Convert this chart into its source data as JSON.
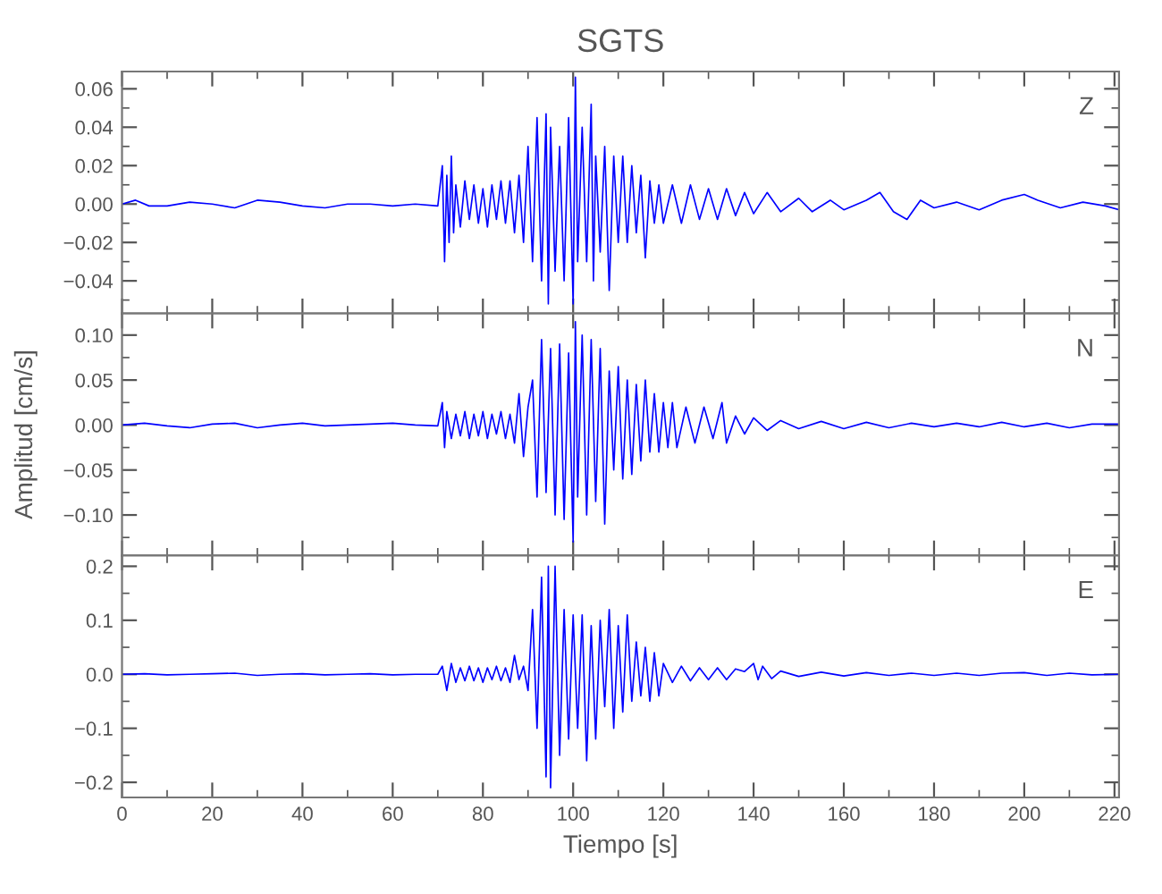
{
  "chart_data": [
    {
      "type": "line",
      "title": "SGTS",
      "annotations": [
        "Z"
      ],
      "tick_labels": "y",
      "xlim": [
        0,
        221
      ],
      "xticks": [
        0,
        {
          "value": 10,
          "label": null
        },
        20,
        {
          "value": 30,
          "label": null
        },
        40,
        {
          "value": 50,
          "label": null
        },
        60,
        {
          "value": 70,
          "label": null
        },
        80,
        {
          "value": 90,
          "label": null
        },
        100,
        {
          "value": 110,
          "label": null
        },
        120,
        {
          "value": 130,
          "label": null
        },
        140,
        {
          "value": 150,
          "label": null
        },
        160,
        {
          "value": 170,
          "label": null
        },
        180,
        {
          "value": 190,
          "label": null
        },
        200,
        {
          "value": 210,
          "label": null
        },
        220
      ],
      "ylim": [
        -0.057,
        0.069
      ],
      "yticks": [
        {
          "value": -0.05,
          "label": null
        },
        {
          "value": -0.04,
          "label": "−0.04"
        },
        {
          "value": -0.03,
          "label": null
        },
        {
          "value": -0.02,
          "label": "−0.02"
        },
        {
          "value": -0.01,
          "label": null
        },
        {
          "value": 0,
          "label": "0.00"
        },
        {
          "value": 0.01,
          "label": null
        },
        {
          "value": 0.02,
          "label": "0.02"
        },
        {
          "value": 0.03,
          "label": null
        },
        {
          "value": 0.04,
          "label": "0.04"
        },
        {
          "value": 0.05,
          "label": null
        },
        {
          "value": 0.06,
          "label": "0.06"
        }
      ],
      "grid": false,
      "series": [
        {
          "color": "#0000ff",
          "x": [
            0,
            3,
            6,
            10,
            15,
            20,
            25,
            30,
            35,
            40,
            45,
            50,
            55,
            60,
            65,
            70,
            71,
            71.5,
            72,
            72.5,
            73,
            73.5,
            74,
            75,
            76,
            77,
            78,
            79,
            80,
            81,
            82,
            83,
            84,
            85,
            86,
            87,
            88,
            89,
            90,
            91,
            92,
            93,
            94,
            94.5,
            95,
            96,
            97,
            98,
            99,
            100,
            100.5,
            101,
            102,
            103,
            104,
            104.5,
            105,
            106,
            107,
            108,
            109,
            110,
            111,
            112,
            113,
            114,
            115,
            116,
            117,
            118,
            119,
            120,
            122,
            124,
            126,
            128,
            130,
            132,
            134,
            136,
            138,
            140,
            143,
            146,
            150,
            153,
            157,
            160,
            165,
            168,
            171,
            174,
            177,
            180,
            185,
            190,
            195,
            200,
            203,
            208,
            213,
            218,
            221
          ],
          "values": [
            0.0,
            0.002,
            -0.001,
            -0.001,
            0.001,
            0.0,
            -0.002,
            0.002,
            0.001,
            -0.001,
            -0.002,
            0.0,
            0.0,
            -0.001,
            0.0,
            -0.001,
            0.02,
            -0.03,
            0.015,
            -0.02,
            0.025,
            -0.015,
            0.01,
            -0.012,
            0.012,
            -0.008,
            0.01,
            -0.01,
            0.008,
            -0.012,
            0.01,
            -0.008,
            0.012,
            -0.01,
            0.012,
            -0.015,
            0.015,
            -0.02,
            0.03,
            -0.03,
            0.045,
            -0.04,
            0.047,
            -0.052,
            0.04,
            -0.035,
            0.03,
            -0.04,
            0.045,
            -0.052,
            0.066,
            -0.03,
            0.04,
            -0.03,
            0.052,
            -0.04,
            0.025,
            -0.025,
            0.03,
            -0.045,
            0.025,
            -0.02,
            0.025,
            -0.02,
            0.02,
            -0.015,
            0.015,
            -0.028,
            0.012,
            -0.01,
            0.01,
            -0.01,
            0.01,
            -0.01,
            0.01,
            -0.008,
            0.008,
            -0.008,
            0.008,
            -0.006,
            0.006,
            -0.005,
            0.006,
            -0.004,
            0.003,
            -0.004,
            0.002,
            -0.003,
            0.002,
            0.006,
            -0.004,
            -0.008,
            0.002,
            -0.002,
            0.001,
            -0.003,
            0.002,
            0.005,
            0.002,
            -0.002,
            0.001,
            -0.001,
            -0.003
          ]
        }
      ]
    },
    {
      "type": "line",
      "ylabel": "Amplitud [cm/s]",
      "annotations": [
        "N"
      ],
      "tick_labels": "y",
      "xlim": [
        0,
        221
      ],
      "xticks": [
        0,
        {
          "value": 10,
          "label": null
        },
        20,
        {
          "value": 30,
          "label": null
        },
        40,
        {
          "value": 50,
          "label": null
        },
        60,
        {
          "value": 70,
          "label": null
        },
        80,
        {
          "value": 90,
          "label": null
        },
        100,
        {
          "value": 110,
          "label": null
        },
        120,
        {
          "value": 130,
          "label": null
        },
        140,
        {
          "value": 150,
          "label": null
        },
        160,
        {
          "value": 170,
          "label": null
        },
        180,
        {
          "value": 190,
          "label": null
        },
        200,
        {
          "value": 210,
          "label": null
        },
        220
      ],
      "ylim": [
        -0.145,
        0.124
      ],
      "yticks": [
        {
          "value": -0.125,
          "label": null
        },
        {
          "value": -0.1,
          "label": "−0.10"
        },
        {
          "value": -0.075,
          "label": null
        },
        {
          "value": -0.05,
          "label": "−0.05"
        },
        {
          "value": -0.025,
          "label": null
        },
        {
          "value": 0,
          "label": "0.00"
        },
        {
          "value": 0.025,
          "label": null
        },
        {
          "value": 0.05,
          "label": "0.05"
        },
        {
          "value": 0.075,
          "label": null
        },
        {
          "value": 0.1,
          "label": "0.10"
        }
      ],
      "grid": false,
      "series": [
        {
          "color": "#0000ff",
          "x": [
            0,
            5,
            10,
            15,
            20,
            25,
            30,
            35,
            40,
            45,
            50,
            55,
            60,
            65,
            70,
            71,
            71.5,
            72,
            73,
            74,
            75,
            76,
            77,
            78,
            79,
            80,
            81,
            82,
            83,
            84,
            85,
            86,
            87,
            88,
            89,
            90,
            91,
            92,
            93,
            94,
            95,
            96,
            97,
            98,
            99,
            100,
            100.5,
            101,
            102,
            103,
            104,
            105,
            106,
            107,
            108,
            109,
            110,
            111,
            112,
            113,
            114,
            115,
            116,
            117,
            118,
            119,
            120,
            121,
            122,
            123,
            125,
            127,
            129,
            131,
            133,
            134,
            136,
            138,
            140,
            143,
            146,
            150,
            155,
            160,
            165,
            170,
            175,
            180,
            185,
            190,
            195,
            200,
            205,
            210,
            215,
            221
          ],
          "values": [
            0.0,
            0.002,
            -0.001,
            -0.003,
            0.001,
            0.002,
            -0.003,
            0.0,
            0.002,
            -0.001,
            0.0,
            0.001,
            0.002,
            0.0,
            -0.001,
            0.025,
            -0.025,
            0.015,
            -0.015,
            0.012,
            -0.012,
            0.015,
            -0.015,
            0.012,
            -0.012,
            0.015,
            -0.015,
            0.012,
            -0.01,
            0.015,
            -0.015,
            0.012,
            -0.02,
            0.035,
            -0.035,
            0.02,
            0.05,
            -0.08,
            0.095,
            -0.075,
            0.085,
            -0.1,
            0.09,
            -0.105,
            0.08,
            -0.13,
            0.115,
            -0.08,
            0.1,
            -0.1,
            0.095,
            -0.085,
            0.085,
            -0.11,
            0.06,
            -0.05,
            0.065,
            -0.06,
            0.05,
            -0.055,
            0.045,
            -0.04,
            0.05,
            -0.03,
            0.035,
            -0.03,
            0.025,
            -0.025,
            0.025,
            -0.025,
            0.02,
            -0.02,
            0.02,
            -0.015,
            0.025,
            -0.02,
            0.01,
            -0.01,
            0.008,
            -0.006,
            0.005,
            -0.004,
            0.004,
            -0.004,
            0.003,
            -0.003,
            0.002,
            -0.002,
            0.002,
            -0.002,
            0.003,
            -0.002,
            0.002,
            -0.003,
            0.001,
            0.001
          ]
        }
      ]
    },
    {
      "type": "line",
      "xlabel": "Tiempo [s]",
      "annotations": [
        "E"
      ],
      "xlim": [
        0,
        221
      ],
      "xticks": [
        0,
        {
          "value": 10,
          "label": null
        },
        20,
        {
          "value": 30,
          "label": null
        },
        40,
        {
          "value": 50,
          "label": null
        },
        60,
        {
          "value": 70,
          "label": null
        },
        80,
        {
          "value": 90,
          "label": null
        },
        100,
        {
          "value": 110,
          "label": null
        },
        120,
        {
          "value": 130,
          "label": null
        },
        140,
        {
          "value": 150,
          "label": null
        },
        160,
        {
          "value": 170,
          "label": null
        },
        180,
        {
          "value": 190,
          "label": null
        },
        200,
        {
          "value": 210,
          "label": null
        },
        220
      ],
      "ylim": [
        -0.228,
        0.22
      ],
      "yticks": [
        {
          "value": -0.2,
          "label": "−0.2"
        },
        {
          "value": -0.15,
          "label": null
        },
        {
          "value": -0.1,
          "label": "−0.1"
        },
        {
          "value": -0.05,
          "label": null
        },
        {
          "value": 0,
          "label": "0.0"
        },
        {
          "value": 0.05,
          "label": null
        },
        {
          "value": 0.1,
          "label": "0.1"
        },
        {
          "value": 0.15,
          "label": null
        },
        {
          "value": 0.2,
          "label": "0.2"
        }
      ],
      "grid": false,
      "series": [
        {
          "color": "#0000ff",
          "x": [
            0,
            5,
            10,
            15,
            20,
            25,
            30,
            35,
            40,
            45,
            50,
            55,
            60,
            65,
            70,
            71,
            72,
            73,
            74,
            75,
            76,
            77,
            78,
            79,
            80,
            81,
            82,
            83,
            84,
            85,
            86,
            87,
            88,
            89,
            90,
            91,
            92,
            93,
            94,
            94.5,
            95,
            96,
            97,
            98,
            99,
            100,
            101,
            102,
            103,
            104,
            105,
            106,
            107,
            108,
            109,
            110,
            111,
            112,
            113,
            114,
            115,
            116,
            117,
            118,
            119,
            120,
            122,
            124,
            126,
            128,
            130,
            132,
            134,
            136,
            138,
            140,
            141,
            142,
            144,
            146,
            150,
            155,
            160,
            165,
            170,
            175,
            180,
            185,
            190,
            195,
            200,
            205,
            210,
            215,
            221
          ],
          "values": [
            0.0,
            0.001,
            -0.001,
            0.0,
            0.001,
            0.002,
            -0.002,
            0.0,
            0.001,
            -0.001,
            0.0,
            0.001,
            -0.001,
            0.0,
            0.0,
            0.015,
            -0.03,
            0.02,
            -0.015,
            0.012,
            -0.012,
            0.015,
            -0.012,
            0.012,
            -0.015,
            0.012,
            -0.01,
            0.015,
            -0.012,
            0.012,
            -0.015,
            0.035,
            -0.01,
            0.015,
            -0.03,
            0.12,
            -0.1,
            0.18,
            -0.19,
            0.2,
            -0.21,
            0.2,
            -0.15,
            0.12,
            -0.12,
            0.11,
            -0.1,
            0.11,
            -0.16,
            0.09,
            -0.12,
            0.1,
            -0.06,
            0.12,
            -0.1,
            0.09,
            -0.07,
            0.11,
            -0.05,
            0.06,
            -0.04,
            0.05,
            -0.05,
            0.04,
            -0.04,
            0.02,
            -0.015,
            0.015,
            -0.012,
            0.012,
            -0.01,
            0.012,
            -0.01,
            0.01,
            0.005,
            0.02,
            -0.01,
            0.015,
            -0.008,
            0.006,
            -0.004,
            0.004,
            -0.003,
            0.003,
            -0.002,
            0.002,
            -0.002,
            0.002,
            -0.002,
            0.002,
            0.003,
            -0.002,
            0.002,
            -0.001,
            0.0
          ]
        }
      ]
    }
  ]
}
